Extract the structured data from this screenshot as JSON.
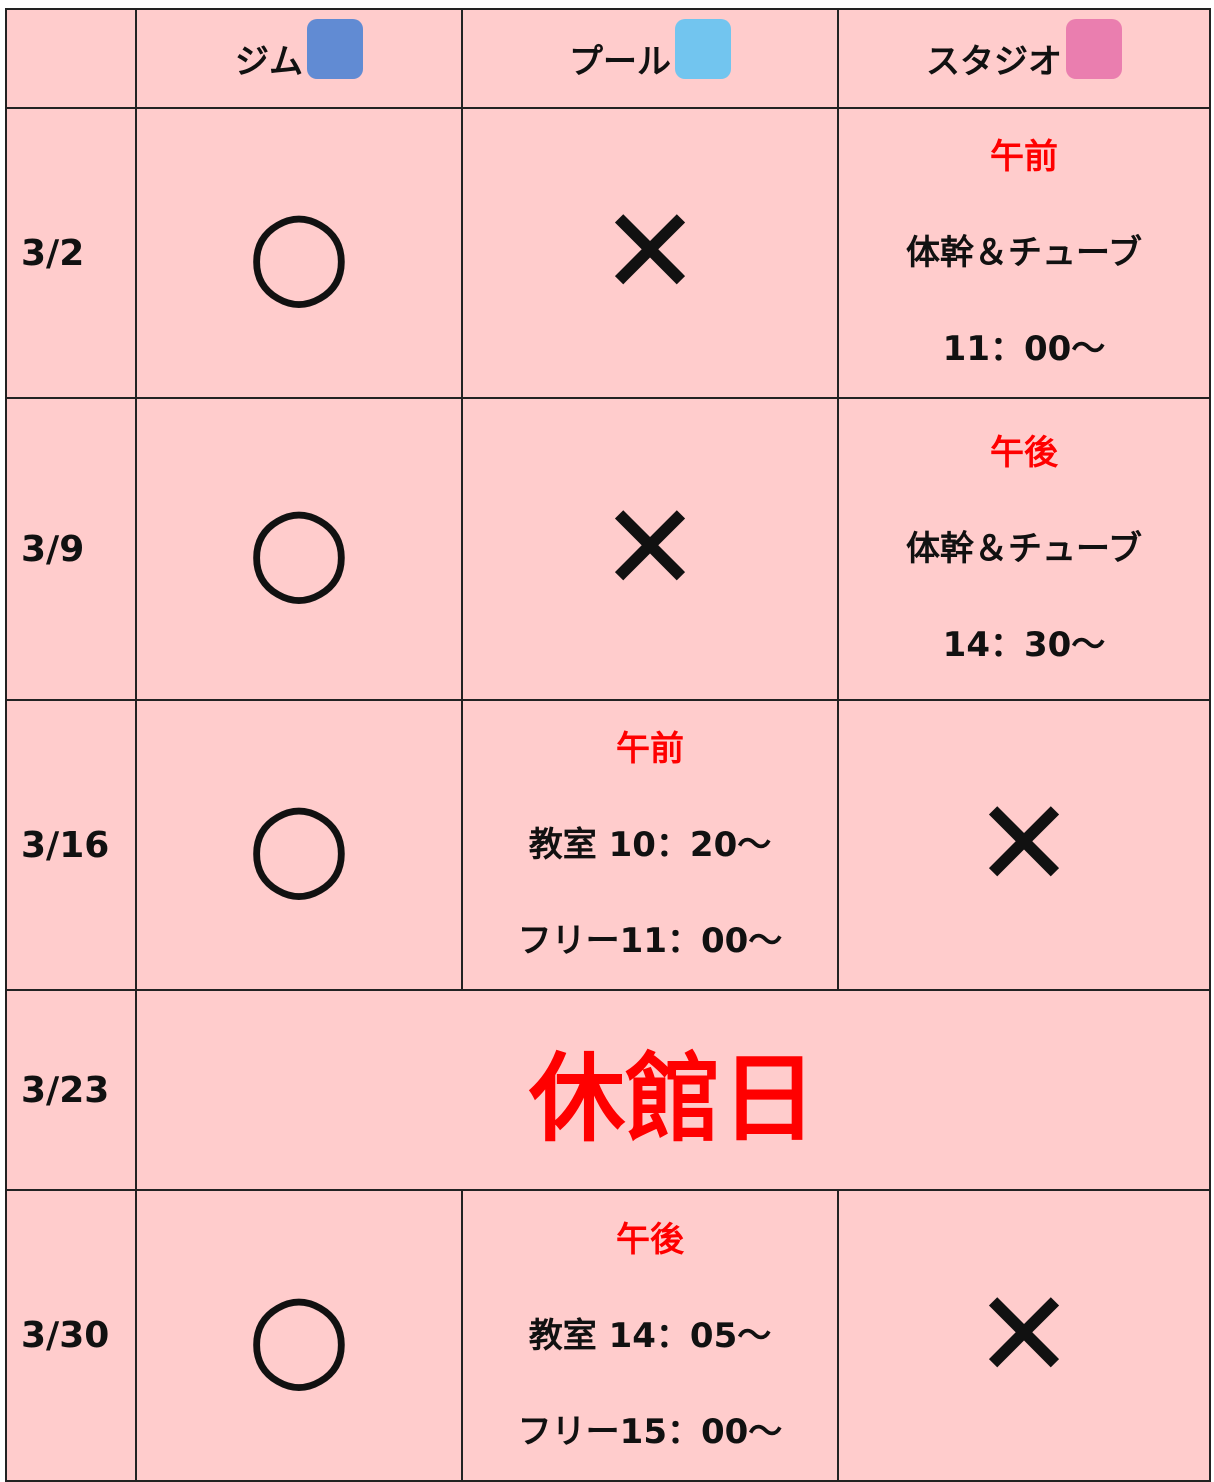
{
  "header": {
    "columns": [
      "ジム",
      "プール",
      "スタジオ"
    ]
  },
  "rows": [
    {
      "date": "3/2",
      "cells": [
        {
          "text": "○"
        },
        {
          "text": "✕"
        },
        {
          "label": "午前",
          "lines": [
            "体幹＆チューブ",
            "11：00〜"
          ]
        }
      ]
    },
    {
      "date": "3/9",
      "cells": [
        {
          "text": "○"
        },
        {
          "text": "✕"
        },
        {
          "label": "午後",
          "lines": [
            "体幹＆チューブ",
            "14：30〜"
          ]
        }
      ]
    },
    {
      "date": "3/16",
      "cells": [
        {
          "text": "○"
        },
        {
          "label": "午前",
          "lines": [
            "教室 10：20〜",
            "フリー11：00〜"
          ]
        },
        {
          "text": "✕"
        }
      ]
    },
    {
      "date": "3/23",
      "closed": "休館日"
    },
    {
      "date": "3/30",
      "cells": [
        {
          "text": "○"
        },
        {
          "label": "午後",
          "lines": [
            "教室 14：05〜",
            "フリー15：00〜"
          ]
        },
        {
          "text": "✕"
        }
      ]
    }
  ]
}
